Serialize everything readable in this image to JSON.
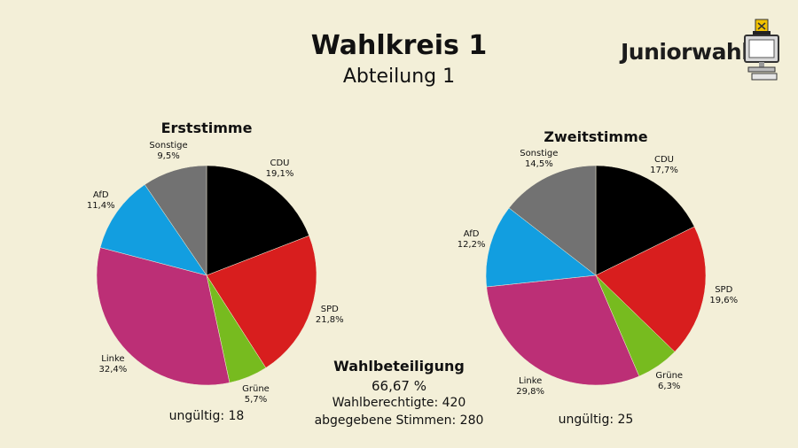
{
  "header": {
    "title": "Wahlkreis 1",
    "subtitle": "Abteilung 1",
    "logo_text": "Juniorwahl",
    "logo_icon": "computer-ballot-icon"
  },
  "colors": {
    "CDU": "#000000",
    "SPD": "#d81e1e",
    "Grüne": "#77bb1f",
    "Linke": "#bc2f76",
    "AfD": "#129ee0",
    "Sonstige": "#727272",
    "background": "#f3efd8"
  },
  "turnout": {
    "title": "Wahlbeteiligung",
    "rate": "66,67 %",
    "eligible": "Wahlberechtigte: 420",
    "cast": "abgegebene Stimmen: 280"
  },
  "chart_data": [
    {
      "type": "pie",
      "title": "Erststimme",
      "slices": [
        {
          "name": "CDU",
          "value": 19.1,
          "label": "19,1%"
        },
        {
          "name": "SPD",
          "value": 21.8,
          "label": "21,8%"
        },
        {
          "name": "Grüne",
          "value": 5.7,
          "label": "5,7%"
        },
        {
          "name": "Linke",
          "value": 32.4,
          "label": "32,4%"
        },
        {
          "name": "AfD",
          "value": 11.4,
          "label": "11,4%"
        },
        {
          "name": "Sonstige",
          "value": 9.5,
          "label": "9,5%"
        }
      ],
      "invalid": "ungültig: 18"
    },
    {
      "type": "pie",
      "title": "Zweitstimme",
      "slices": [
        {
          "name": "CDU",
          "value": 17.7,
          "label": "17,7%"
        },
        {
          "name": "SPD",
          "value": 19.6,
          "label": "19,6%"
        },
        {
          "name": "Grüne",
          "value": 6.3,
          "label": "6,3%"
        },
        {
          "name": "Linke",
          "value": 29.8,
          "label": "29,8%"
        },
        {
          "name": "AfD",
          "value": 12.2,
          "label": "12,2%"
        },
        {
          "name": "Sonstige",
          "value": 14.5,
          "label": "14,5%"
        }
      ],
      "invalid": "ungültig: 25"
    }
  ]
}
